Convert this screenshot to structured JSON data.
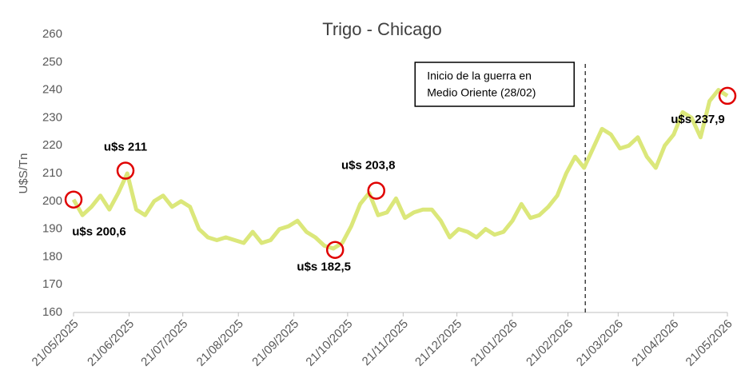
{
  "chart_data": {
    "type": "line",
    "title": "Trigo - Chicago",
    "y_label": "U$S/Tn",
    "xlim": [
      "2025-05-21",
      "2026-05-21"
    ],
    "xticks": [
      {
        "value": "2025-05-21",
        "label": "21/05/2025"
      },
      {
        "value": "2025-06-21",
        "label": "21/06/2025"
      },
      {
        "value": "2025-07-21",
        "label": "21/07/2025"
      },
      {
        "value": "2025-08-21",
        "label": "21/08/2025"
      },
      {
        "value": "2025-09-21",
        "label": "21/09/2025"
      },
      {
        "value": "2025-10-21",
        "label": "21/10/2025"
      },
      {
        "value": "2025-11-21",
        "label": "21/11/2025"
      },
      {
        "value": "2025-12-21",
        "label": "21/12/2025"
      },
      {
        "value": "2026-01-21",
        "label": "21/01/2026"
      },
      {
        "value": "2026-02-21",
        "label": "21/02/2026"
      },
      {
        "value": "2026-03-21",
        "label": "21/03/2026"
      },
      {
        "value": "2026-04-21",
        "label": "21/04/2026"
      },
      {
        "value": "2026-05-21",
        "label": "21/05/2026"
      }
    ],
    "ylim": [
      160,
      260
    ],
    "yticks": [
      160,
      170,
      180,
      190,
      200,
      210,
      220,
      230,
      240,
      250,
      260
    ],
    "grid": false,
    "x": [
      "2025-05-21",
      "2025-05-26",
      "2025-05-31",
      "2025-06-05",
      "2025-06-10",
      "2025-06-15",
      "2025-06-20",
      "2025-06-25",
      "2025-06-30",
      "2025-07-05",
      "2025-07-10",
      "2025-07-15",
      "2025-07-20",
      "2025-07-25",
      "2025-07-30",
      "2025-08-04",
      "2025-08-09",
      "2025-08-14",
      "2025-08-19",
      "2025-08-24",
      "2025-08-29",
      "2025-09-03",
      "2025-09-08",
      "2025-09-13",
      "2025-09-18",
      "2025-09-23",
      "2025-09-28",
      "2025-10-03",
      "2025-10-08",
      "2025-10-13",
      "2025-10-18",
      "2025-10-23",
      "2025-10-28",
      "2025-11-02",
      "2025-11-07",
      "2025-11-12",
      "2025-11-17",
      "2025-11-22",
      "2025-11-27",
      "2025-12-02",
      "2025-12-07",
      "2025-12-12",
      "2025-12-17",
      "2025-12-22",
      "2025-12-27",
      "2026-01-01",
      "2026-01-06",
      "2026-01-11",
      "2026-01-16",
      "2026-01-21",
      "2026-01-26",
      "2026-01-31",
      "2026-02-05",
      "2026-02-10",
      "2026-02-15",
      "2026-02-20",
      "2026-02-25",
      "2026-03-02",
      "2026-03-07",
      "2026-03-12",
      "2026-03-17",
      "2026-03-22",
      "2026-03-27",
      "2026-04-01",
      "2026-04-06",
      "2026-04-11",
      "2026-04-16",
      "2026-04-21",
      "2026-04-26",
      "2026-05-01",
      "2026-05-06",
      "2026-05-11",
      "2026-05-16",
      "2026-05-21"
    ],
    "series": [
      {
        "color": "#dbe77a",
        "values": [
          200.6,
          195,
          198,
          202,
          197,
          203,
          210,
          197,
          195,
          200,
          202,
          198,
          200,
          198,
          190,
          187,
          186,
          187,
          186,
          185,
          189,
          185,
          186,
          190,
          191,
          193,
          189,
          187,
          184,
          183,
          185,
          191,
          199,
          203,
          195,
          196,
          201,
          194,
          196,
          197,
          197,
          193,
          187,
          190,
          189,
          187,
          190,
          188,
          189,
          193,
          199,
          194,
          195,
          198,
          202,
          210,
          216,
          212,
          219,
          226,
          224,
          219,
          220,
          223,
          216,
          212,
          220,
          224,
          232,
          230,
          223,
          236,
          240,
          237.9
        ]
      }
    ],
    "annotations": [
      {
        "text": "u$s 200,6",
        "x": "2025-05-21",
        "y": 200.6
      },
      {
        "text": "u$s 211",
        "x": "2025-06-19",
        "y": 211
      },
      {
        "text": "u$s 182,5",
        "x": "2025-10-14",
        "y": 182.5
      },
      {
        "text": "u$s 203,8",
        "x": "2025-11-06",
        "y": 203.8
      },
      {
        "text": "u$s 237,9",
        "x": "2026-05-21",
        "y": 237.9
      }
    ],
    "event": {
      "x": "2026-02-28",
      "lines": [
        "Inicio de la guerra en",
        "Medio Oriente (28/02)"
      ]
    }
  }
}
